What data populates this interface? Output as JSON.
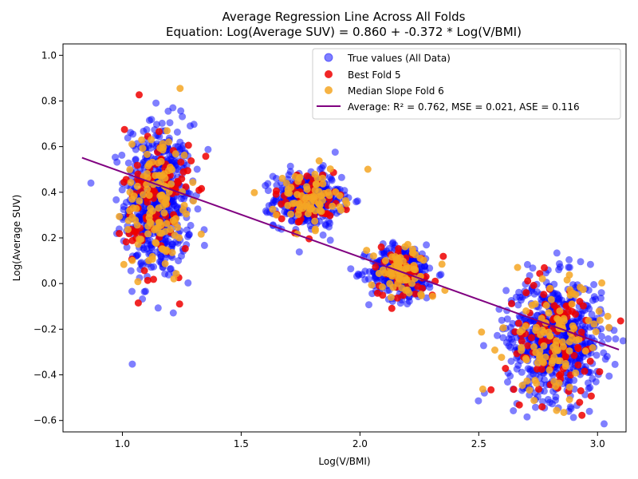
{
  "chart_data": {
    "type": "scatter",
    "title": "Average Regression Line Across All Folds",
    "subtitle": "Equation: Log(Average SUV) = 0.860 + -0.372 * Log(V/BMI)",
    "xlabel": "Log(V/BMI)",
    "ylabel": "Log(Average SUV)",
    "xlim": [
      0.75,
      3.12
    ],
    "ylim": [
      -0.65,
      1.05
    ],
    "xticks": [
      "1.0",
      "1.5",
      "2.0",
      "2.5",
      "3.0"
    ],
    "yticks": [
      "−0.6",
      "−0.4",
      "−0.2",
      "0.0",
      "0.2",
      "0.4",
      "0.6",
      "0.8",
      "1.0"
    ],
    "grid": false,
    "legend_position": "top-right",
    "regression": {
      "intercept": 0.86,
      "slope": -0.372,
      "x_range": [
        0.83,
        3.09
      ]
    },
    "clusters": [
      {
        "x_mean": 1.15,
        "x_sd": 0.07,
        "y_mean": 0.36,
        "y_sd": 0.17,
        "n_true": 560,
        "n_best": 110,
        "n_median": 120
      },
      {
        "x_mean": 1.78,
        "x_sd": 0.07,
        "y_mean": 0.37,
        "y_sd": 0.06,
        "n_true": 360,
        "n_best": 55,
        "n_median": 75
      },
      {
        "x_mean": 2.18,
        "x_sd": 0.07,
        "y_mean": 0.05,
        "y_sd": 0.06,
        "n_true": 300,
        "n_best": 55,
        "n_median": 70
      },
      {
        "x_mean": 2.82,
        "x_sd": 0.1,
        "y_mean": -0.24,
        "y_sd": 0.13,
        "n_true": 640,
        "n_best": 100,
        "n_median": 110
      }
    ],
    "series": [
      {
        "name": "True values (All Data)",
        "color": "#0000ff",
        "opacity": 0.5
      },
      {
        "name": "Best Fold 5",
        "color": "#ee0000",
        "opacity": 0.85
      },
      {
        "name": "Median Slope Fold 6",
        "color": "#f5a623",
        "opacity": 0.85
      }
    ],
    "line": {
      "name": "Average: R² = 0.762, MSE = 0.021, ASE = 0.116",
      "color": "#800080"
    }
  }
}
